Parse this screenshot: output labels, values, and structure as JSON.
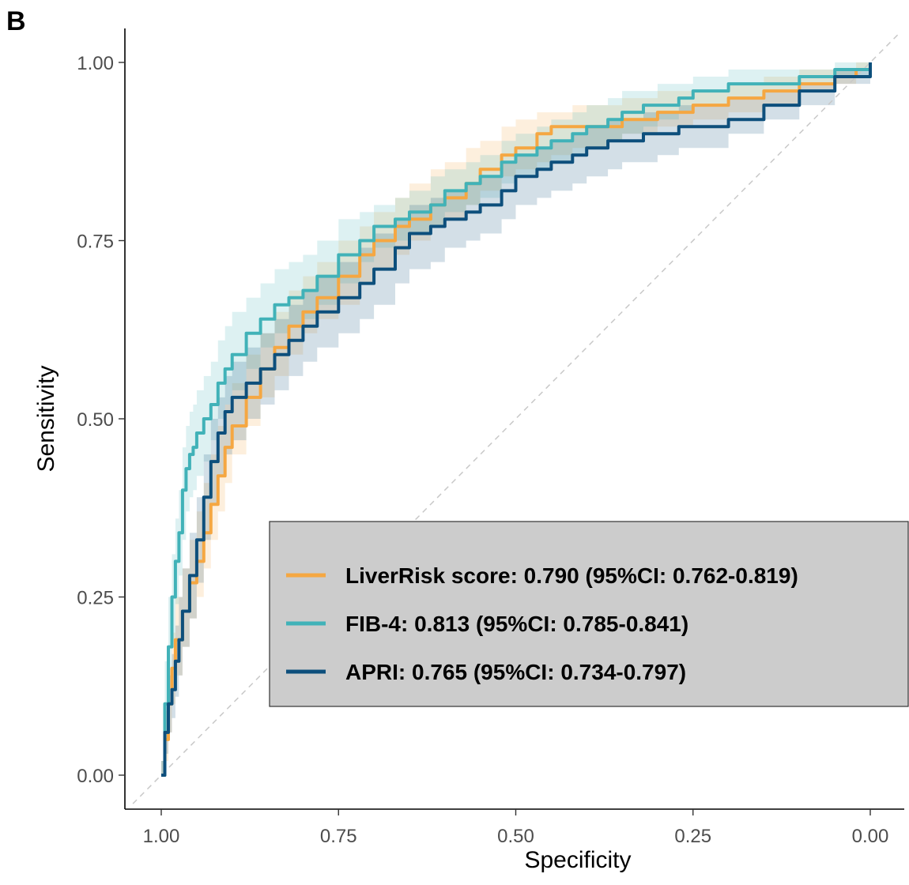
{
  "panel_label": "B",
  "chart_data": {
    "type": "line",
    "title": "",
    "xlabel": "Specificity",
    "ylabel": "Sensitivity",
    "x_reversed": true,
    "xlim": [
      1.0,
      0.0
    ],
    "ylim": [
      0.0,
      1.0
    ],
    "x_ticks": [
      "1.00",
      "0.75",
      "0.50",
      "0.25",
      "0.00"
    ],
    "y_ticks": [
      "0.00",
      "0.25",
      "0.50",
      "0.75",
      "1.00"
    ],
    "grid": false,
    "reference_line": "diagonal, dashed",
    "legend_placement": "bottom-right",
    "series": [
      {
        "name": "LiverRisk score: 0.790 (95%CI: 0.762-0.819)",
        "color": "#f5a742",
        "x": [
          1.0,
          0.995,
          0.99,
          0.985,
          0.98,
          0.97,
          0.96,
          0.95,
          0.94,
          0.93,
          0.92,
          0.91,
          0.9,
          0.88,
          0.86,
          0.84,
          0.82,
          0.8,
          0.78,
          0.75,
          0.72,
          0.7,
          0.67,
          0.65,
          0.62,
          0.6,
          0.57,
          0.55,
          0.52,
          0.5,
          0.47,
          0.45,
          0.42,
          0.4,
          0.37,
          0.35,
          0.32,
          0.3,
          0.27,
          0.25,
          0.2,
          0.15,
          0.1,
          0.05,
          0.02,
          0.0
        ],
        "y": [
          0.0,
          0.05,
          0.1,
          0.15,
          0.19,
          0.23,
          0.27,
          0.3,
          0.34,
          0.38,
          0.42,
          0.46,
          0.49,
          0.53,
          0.57,
          0.6,
          0.63,
          0.65,
          0.67,
          0.7,
          0.73,
          0.75,
          0.77,
          0.78,
          0.8,
          0.81,
          0.83,
          0.85,
          0.87,
          0.88,
          0.9,
          0.91,
          0.91,
          0.91,
          0.91,
          0.92,
          0.92,
          0.93,
          0.93,
          0.94,
          0.95,
          0.96,
          0.97,
          0.98,
          0.99,
          1.0
        ],
        "ci_lower": [
          0.0,
          0.02,
          0.06,
          0.1,
          0.14,
          0.18,
          0.22,
          0.25,
          0.29,
          0.33,
          0.37,
          0.41,
          0.45,
          0.49,
          0.53,
          0.56,
          0.59,
          0.62,
          0.64,
          0.66,
          0.69,
          0.71,
          0.73,
          0.75,
          0.77,
          0.78,
          0.8,
          0.82,
          0.84,
          0.85,
          0.86,
          0.87,
          0.88,
          0.88,
          0.89,
          0.9,
          0.9,
          0.91,
          0.91,
          0.92,
          0.93,
          0.94,
          0.96,
          0.97,
          0.99,
          1.0
        ],
        "ci_upper": [
          0.02,
          0.09,
          0.15,
          0.2,
          0.25,
          0.29,
          0.33,
          0.37,
          0.41,
          0.45,
          0.49,
          0.52,
          0.55,
          0.59,
          0.62,
          0.65,
          0.68,
          0.7,
          0.72,
          0.75,
          0.77,
          0.79,
          0.81,
          0.83,
          0.85,
          0.86,
          0.88,
          0.89,
          0.91,
          0.92,
          0.93,
          0.93,
          0.94,
          0.94,
          0.94,
          0.95,
          0.95,
          0.96,
          0.96,
          0.96,
          0.97,
          0.98,
          0.99,
          0.99,
          1.0,
          1.0
        ]
      },
      {
        "name": "FIB-4: 0.813 (95%CI: 0.785-0.841)",
        "color": "#41b2b8",
        "x": [
          1.0,
          0.995,
          0.99,
          0.985,
          0.98,
          0.975,
          0.97,
          0.965,
          0.96,
          0.955,
          0.95,
          0.94,
          0.93,
          0.92,
          0.91,
          0.9,
          0.88,
          0.86,
          0.84,
          0.82,
          0.8,
          0.78,
          0.75,
          0.72,
          0.7,
          0.67,
          0.65,
          0.62,
          0.6,
          0.57,
          0.55,
          0.52,
          0.5,
          0.47,
          0.45,
          0.42,
          0.4,
          0.37,
          0.35,
          0.32,
          0.3,
          0.27,
          0.25,
          0.2,
          0.15,
          0.1,
          0.05,
          0.0
        ],
        "y": [
          0.0,
          0.1,
          0.18,
          0.25,
          0.3,
          0.34,
          0.4,
          0.43,
          0.45,
          0.46,
          0.48,
          0.5,
          0.52,
          0.55,
          0.57,
          0.59,
          0.62,
          0.64,
          0.66,
          0.67,
          0.68,
          0.7,
          0.73,
          0.75,
          0.77,
          0.78,
          0.79,
          0.8,
          0.82,
          0.83,
          0.84,
          0.86,
          0.87,
          0.88,
          0.89,
          0.9,
          0.91,
          0.92,
          0.93,
          0.94,
          0.94,
          0.95,
          0.96,
          0.97,
          0.97,
          0.98,
          0.99,
          1.0
        ],
        "ci_lower": [
          0.0,
          0.05,
          0.12,
          0.19,
          0.24,
          0.28,
          0.33,
          0.37,
          0.39,
          0.4,
          0.42,
          0.44,
          0.47,
          0.5,
          0.52,
          0.54,
          0.57,
          0.6,
          0.62,
          0.63,
          0.64,
          0.66,
          0.69,
          0.72,
          0.74,
          0.75,
          0.76,
          0.77,
          0.79,
          0.8,
          0.81,
          0.83,
          0.84,
          0.85,
          0.86,
          0.87,
          0.88,
          0.89,
          0.9,
          0.91,
          0.92,
          0.93,
          0.94,
          0.95,
          0.96,
          0.97,
          0.98,
          1.0
        ],
        "ci_upper": [
          0.02,
          0.16,
          0.25,
          0.31,
          0.36,
          0.4,
          0.46,
          0.49,
          0.51,
          0.52,
          0.54,
          0.56,
          0.58,
          0.61,
          0.63,
          0.65,
          0.67,
          0.69,
          0.71,
          0.72,
          0.73,
          0.75,
          0.78,
          0.79,
          0.8,
          0.81,
          0.82,
          0.84,
          0.85,
          0.86,
          0.87,
          0.89,
          0.9,
          0.91,
          0.92,
          0.93,
          0.94,
          0.95,
          0.96,
          0.96,
          0.97,
          0.97,
          0.98,
          0.99,
          0.99,
          0.99,
          1.0,
          1.0
        ]
      },
      {
        "name": "APRI: 0.765 (95%CI: 0.734-0.797)",
        "color": "#0d4f7c",
        "x": [
          1.0,
          0.995,
          0.99,
          0.985,
          0.98,
          0.975,
          0.97,
          0.96,
          0.95,
          0.94,
          0.93,
          0.92,
          0.91,
          0.9,
          0.88,
          0.86,
          0.84,
          0.82,
          0.8,
          0.78,
          0.75,
          0.72,
          0.7,
          0.67,
          0.65,
          0.62,
          0.6,
          0.57,
          0.55,
          0.52,
          0.5,
          0.47,
          0.45,
          0.42,
          0.4,
          0.37,
          0.35,
          0.32,
          0.3,
          0.27,
          0.25,
          0.2,
          0.15,
          0.1,
          0.05,
          0.0
        ],
        "y": [
          0.0,
          0.06,
          0.1,
          0.12,
          0.16,
          0.19,
          0.23,
          0.28,
          0.33,
          0.39,
          0.44,
          0.48,
          0.51,
          0.53,
          0.55,
          0.57,
          0.59,
          0.61,
          0.63,
          0.65,
          0.67,
          0.69,
          0.71,
          0.74,
          0.76,
          0.77,
          0.78,
          0.79,
          0.8,
          0.82,
          0.84,
          0.85,
          0.86,
          0.87,
          0.88,
          0.89,
          0.89,
          0.9,
          0.9,
          0.91,
          0.91,
          0.92,
          0.94,
          0.96,
          0.98,
          1.0
        ],
        "ci_lower": [
          0.0,
          0.03,
          0.06,
          0.08,
          0.11,
          0.14,
          0.18,
          0.22,
          0.27,
          0.33,
          0.38,
          0.42,
          0.45,
          0.47,
          0.5,
          0.52,
          0.54,
          0.56,
          0.58,
          0.6,
          0.62,
          0.64,
          0.66,
          0.69,
          0.71,
          0.72,
          0.74,
          0.75,
          0.76,
          0.78,
          0.8,
          0.81,
          0.82,
          0.83,
          0.84,
          0.85,
          0.86,
          0.86,
          0.87,
          0.88,
          0.88,
          0.9,
          0.92,
          0.94,
          0.97,
          1.0
        ],
        "ci_upper": [
          0.02,
          0.1,
          0.14,
          0.17,
          0.21,
          0.25,
          0.29,
          0.34,
          0.39,
          0.45,
          0.5,
          0.53,
          0.56,
          0.58,
          0.6,
          0.62,
          0.64,
          0.66,
          0.68,
          0.7,
          0.72,
          0.74,
          0.76,
          0.78,
          0.8,
          0.81,
          0.82,
          0.83,
          0.84,
          0.86,
          0.87,
          0.88,
          0.89,
          0.9,
          0.91,
          0.92,
          0.92,
          0.93,
          0.93,
          0.94,
          0.94,
          0.95,
          0.96,
          0.97,
          0.99,
          1.0
        ]
      }
    ]
  }
}
